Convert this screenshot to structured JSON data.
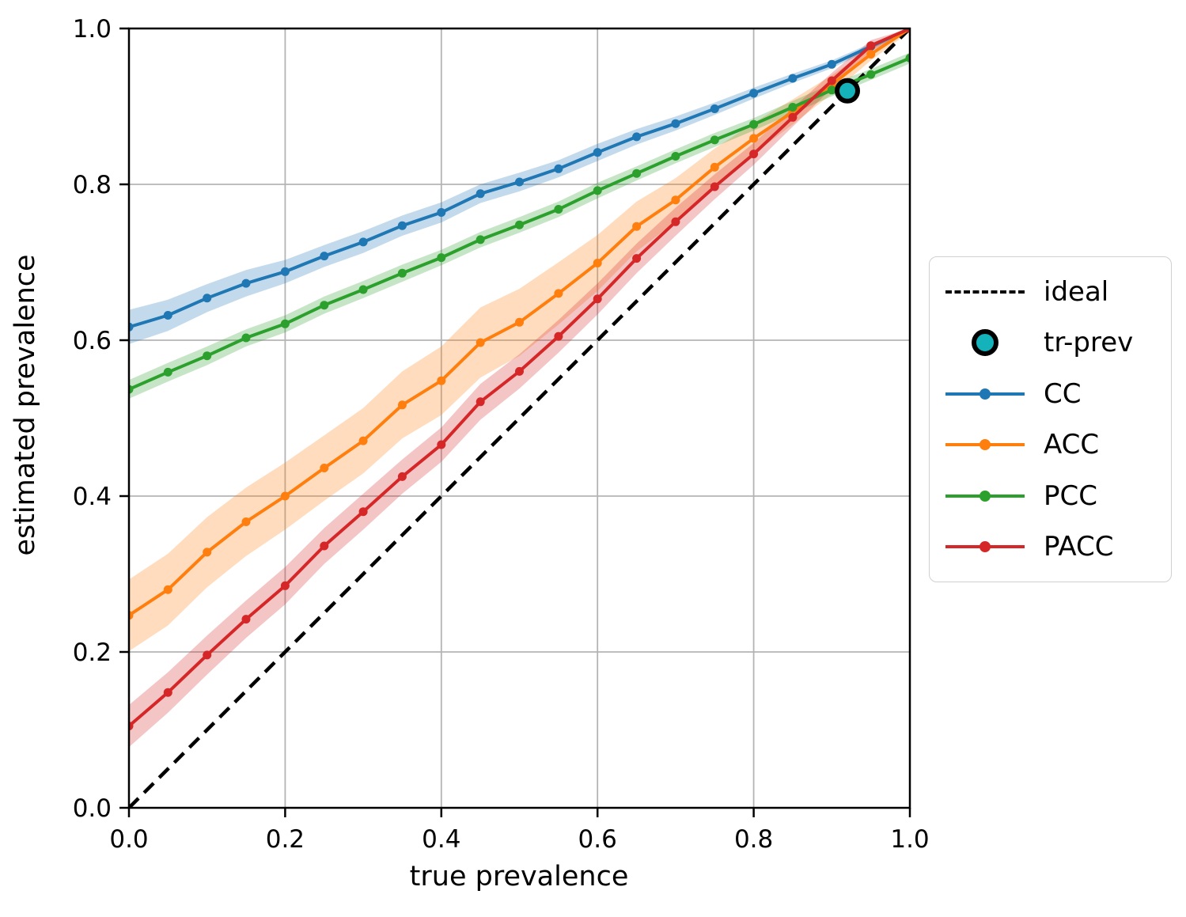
{
  "figure": {
    "background": "#ffffff"
  },
  "chart_data": {
    "type": "line",
    "title": "",
    "xlabel": "true prevalence",
    "ylabel": "estimated prevalence",
    "xlim": [
      0,
      1
    ],
    "ylim": [
      0,
      1
    ],
    "grid": true,
    "legend_position": "outside-right",
    "xticks": [
      0,
      0.2,
      0.4,
      0.6,
      0.8,
      1
    ],
    "xtick_labels": [
      "0.0",
      "0.2",
      "0.4",
      "0.6",
      "0.8",
      "1.0"
    ],
    "yticks": [
      0,
      0.2,
      0.4,
      0.6,
      0.8,
      1
    ],
    "ytick_labels": [
      "0.0",
      "0.2",
      "0.4",
      "0.6",
      "0.8",
      "1.0"
    ],
    "x": [
      0,
      0.05,
      0.1,
      0.15,
      0.2,
      0.25,
      0.3,
      0.35,
      0.4,
      0.45,
      0.5,
      0.55,
      0.6,
      0.65,
      0.7,
      0.75,
      0.8,
      0.85,
      0.9,
      0.95,
      1
    ],
    "series": [
      {
        "name": "CC",
        "color": "#1f77b4",
        "values": [
          0.617,
          0.632,
          0.654,
          0.673,
          0.688,
          0.708,
          0.726,
          0.747,
          0.764,
          0.788,
          0.803,
          0.82,
          0.841,
          0.861,
          0.878,
          0.897,
          0.917,
          0.936,
          0.954,
          0.977,
          1.0
        ],
        "band_halfwidth": [
          0.022,
          0.02,
          0.018,
          0.017,
          0.015,
          0.014,
          0.014,
          0.013,
          0.013,
          0.012,
          0.012,
          0.011,
          0.011,
          0.01,
          0.009,
          0.008,
          0.007,
          0.006,
          0.005,
          0.004,
          0.003
        ]
      },
      {
        "name": "ACC",
        "color": "#ff7f0e",
        "values": [
          0.247,
          0.28,
          0.328,
          0.367,
          0.4,
          0.436,
          0.471,
          0.517,
          0.548,
          0.597,
          0.623,
          0.66,
          0.699,
          0.746,
          0.78,
          0.822,
          0.859,
          0.893,
          0.928,
          0.967,
          1.0
        ],
        "band_halfwidth": [
          0.046,
          0.046,
          0.045,
          0.044,
          0.043,
          0.042,
          0.042,
          0.043,
          0.044,
          0.045,
          0.043,
          0.04,
          0.036,
          0.032,
          0.028,
          0.024,
          0.02,
          0.016,
          0.012,
          0.008,
          0.004
        ]
      },
      {
        "name": "PCC",
        "color": "#2ca02c",
        "values": [
          0.537,
          0.559,
          0.58,
          0.603,
          0.621,
          0.645,
          0.665,
          0.686,
          0.706,
          0.729,
          0.748,
          0.768,
          0.792,
          0.814,
          0.836,
          0.857,
          0.877,
          0.899,
          0.921,
          0.941,
          0.962
        ],
        "band_halfwidth": [
          0.012,
          0.012,
          0.012,
          0.011,
          0.011,
          0.011,
          0.011,
          0.011,
          0.01,
          0.01,
          0.01,
          0.01,
          0.01,
          0.009,
          0.009,
          0.009,
          0.008,
          0.008,
          0.008,
          0.007,
          0.007
        ]
      },
      {
        "name": "PACC",
        "color": "#d62728",
        "values": [
          0.105,
          0.148,
          0.196,
          0.242,
          0.285,
          0.336,
          0.38,
          0.425,
          0.466,
          0.521,
          0.56,
          0.605,
          0.653,
          0.705,
          0.752,
          0.797,
          0.839,
          0.886,
          0.933,
          0.978,
          1.0
        ],
        "band_halfwidth": [
          0.027,
          0.026,
          0.025,
          0.024,
          0.024,
          0.023,
          0.023,
          0.022,
          0.022,
          0.023,
          0.022,
          0.021,
          0.02,
          0.019,
          0.018,
          0.016,
          0.014,
          0.012,
          0.01,
          0.007,
          0.004
        ]
      }
    ],
    "ideal_line": {
      "label": "ideal",
      "style": "dashed",
      "color": "#000000",
      "x": [
        0,
        1
      ],
      "y": [
        0,
        1
      ]
    },
    "tr_prev": {
      "label": "tr-prev",
      "x": 0.92,
      "y": 0.92,
      "fill": "#14b2ba",
      "edge": "#000000"
    },
    "legend": {
      "items": [
        {
          "label": "ideal",
          "glyph": "dashed-line"
        },
        {
          "label": "tr-prev",
          "glyph": "circle-marker"
        },
        {
          "label": "CC",
          "glyph": "line-marker"
        },
        {
          "label": "ACC",
          "glyph": "line-marker"
        },
        {
          "label": "PCC",
          "glyph": "line-marker"
        },
        {
          "label": "PACC",
          "glyph": "line-marker"
        }
      ]
    },
    "style": {
      "grid_color": "#b4b4b4",
      "spine_color": "#000000",
      "band_opacity": 0.27
    }
  }
}
